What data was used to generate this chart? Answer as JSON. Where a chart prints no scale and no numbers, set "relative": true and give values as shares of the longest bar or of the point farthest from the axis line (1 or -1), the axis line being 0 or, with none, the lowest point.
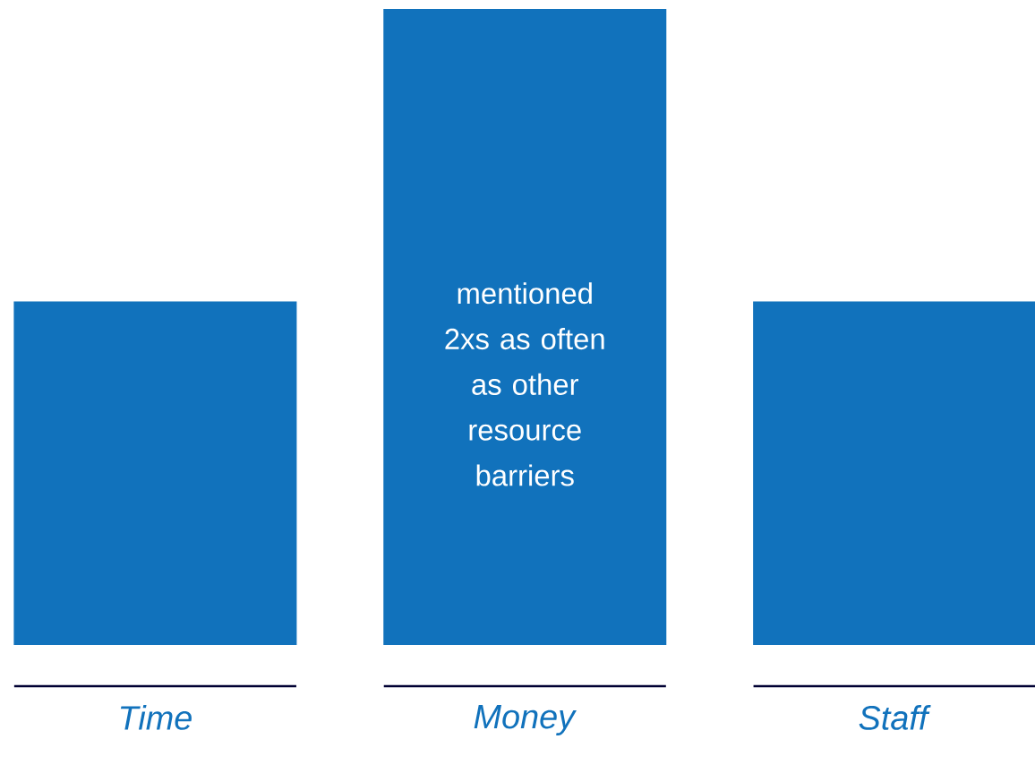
{
  "chart_data": {
    "type": "bar",
    "relative": true,
    "color": "#1172bc",
    "categories": [
      "*Time*",
      "*Money*",
      "*Staff*"
    ],
    "values": [
      0.54,
      1,
      0.54
    ],
    "annotations": [
      "mentioned 2xs as often as other resource barriers"
    ]
  }
}
